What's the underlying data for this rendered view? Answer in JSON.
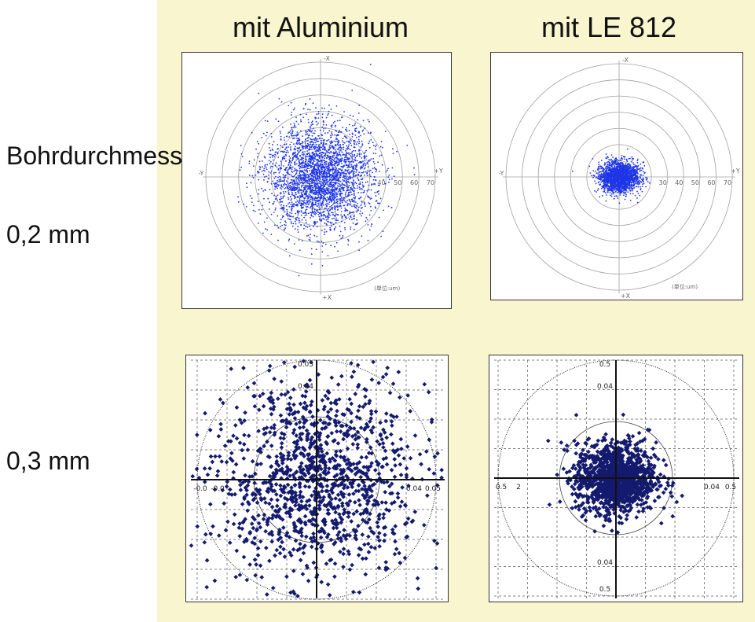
{
  "column_titles": [
    "mit Aluminium",
    "mit LE 812"
  ],
  "row_labels": {
    "heading": "Bohrdurchmesser",
    "row1": "0,2 mm",
    "row2": "0,3 mm"
  },
  "colors": {
    "panel": "#f9f5cf",
    "scatter_top": "#1f36e6",
    "scatter_bottom": "#141a6e"
  },
  "chart_data": [
    {
      "type": "scatter",
      "name": "mit Aluminium / 0,2 mm",
      "x_label": "+Y",
      "x_neg_label": "-Y",
      "y_label": "-X",
      "y_neg_label": "+X",
      "ring_ticks": [
        "40",
        "50",
        "60",
        "70"
      ],
      "unit_label": "(単位:um)",
      "axis_range": [
        -70,
        70
      ],
      "spread_x": 16,
      "spread_y": 16,
      "center": [
        0,
        0
      ],
      "points": 3200
    },
    {
      "type": "scatter",
      "name": "mit LE 812 / 0,2 mm",
      "x_label": "+Y",
      "x_neg_label": "-Y",
      "y_label": "-X",
      "y_neg_label": "+X",
      "ring_ticks": [
        "30",
        "40",
        "50",
        "60",
        "70"
      ],
      "unit_label": "(単位:um)",
      "axis_range": [
        -70,
        70
      ],
      "spread_x": 6,
      "spread_y": 4.5,
      "center": [
        0,
        0
      ],
      "points": 2200
    },
    {
      "type": "scatter",
      "name": "mit Aluminium / 0,3 mm",
      "x_ticks": [
        "-0.0",
        "-0.0",
        "0.04",
        "0.05"
      ],
      "y_ticks": [
        "0.05",
        "0.04"
      ],
      "axis_range": [
        -0.05,
        0.05
      ],
      "spread_x": 0.021,
      "spread_y": 0.021,
      "center": [
        0,
        0
      ],
      "points": 1250
    },
    {
      "type": "scatter",
      "name": "mit LE 812 / 0,3 mm",
      "x_ticks": [
        "0.5",
        "2",
        "0.04",
        "0.5"
      ],
      "y_ticks": [
        "0.5",
        "0.04",
        "0.04",
        "0.5"
      ],
      "axis_range": [
        -0.05,
        0.05
      ],
      "spread_x": 0.0085,
      "spread_y": 0.0075,
      "center": [
        0,
        0
      ],
      "points": 1300
    }
  ]
}
